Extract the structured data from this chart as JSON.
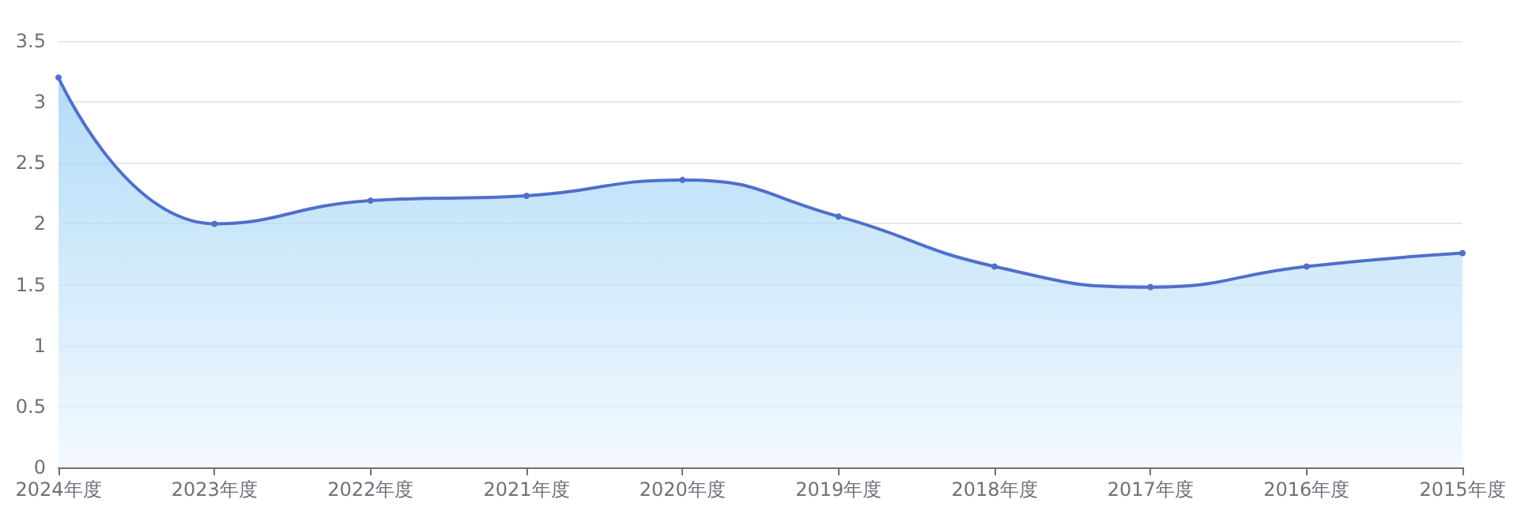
{
  "chart_data": {
    "type": "area",
    "categories": [
      "2024年度",
      "2023年度",
      "2022年度",
      "2021年度",
      "2020年度",
      "2019年度",
      "2018年度",
      "2017年度",
      "2016年度",
      "2015年度"
    ],
    "series": [
      {
        "color": "#4f6fcc",
        "values": [
          3.2,
          2.0,
          2.19,
          2.23,
          2.36,
          2.06,
          1.65,
          1.48,
          1.65,
          1.76
        ]
      }
    ],
    "ylim": [
      0,
      3.5
    ],
    "yticks": [
      0,
      0.5,
      1,
      1.5,
      2,
      2.5,
      3,
      3.5
    ],
    "grid": "y",
    "marker": "circle"
  }
}
